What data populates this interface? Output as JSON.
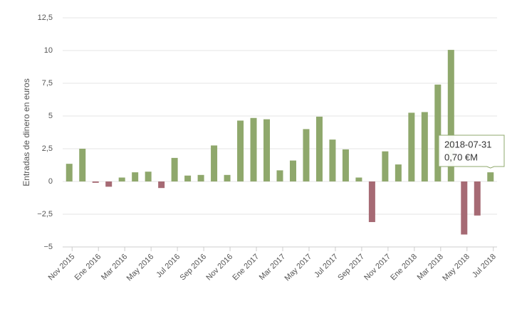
{
  "chart_data": {
    "type": "bar",
    "y_label": "Entradas de dinero en euros",
    "categories": [
      "Nov 2015",
      null,
      "Ene 2016",
      null,
      "Mar 2016",
      null,
      "May 2016",
      null,
      "Jul 2016",
      null,
      "Sep 2016",
      null,
      "Nov 2016",
      null,
      "Ene 2017",
      null,
      "Mar 2017",
      null,
      "May 2017",
      null,
      "Jul 2017",
      null,
      "Sep 2017",
      null,
      "Nov 2017",
      null,
      "Ene 2018",
      null,
      "Mar 2018",
      null,
      "May 2018",
      null,
      "Jul 2018"
    ],
    "values": [
      1.35,
      2.5,
      -0.1,
      -0.4,
      0.3,
      0.7,
      0.75,
      -0.5,
      1.8,
      0.45,
      0.5,
      2.75,
      0.5,
      4.65,
      4.85,
      4.75,
      0.85,
      1.6,
      4.0,
      4.95,
      3.2,
      2.45,
      0.3,
      -3.1,
      2.3,
      1.3,
      5.25,
      5.3,
      7.4,
      10.05,
      -4.05,
      -2.6,
      0.7
    ],
    "positive_color": "#8fa86c",
    "negative_color": "#a66a74",
    "ylim": [
      -5,
      12.5
    ],
    "yticks": [
      {
        "value": -5,
        "label": "−5"
      },
      {
        "value": -2.5,
        "label": "−2,5"
      },
      0,
      {
        "value": 2.5,
        "label": "2,5"
      },
      5,
      {
        "value": 7.5,
        "label": "7,5"
      },
      10,
      {
        "value": 12.5,
        "label": "12,5"
      }
    ],
    "grid": true,
    "tooltip": {
      "index": 32,
      "date": "2018-07-31",
      "value_label": "0,70 €M"
    }
  }
}
